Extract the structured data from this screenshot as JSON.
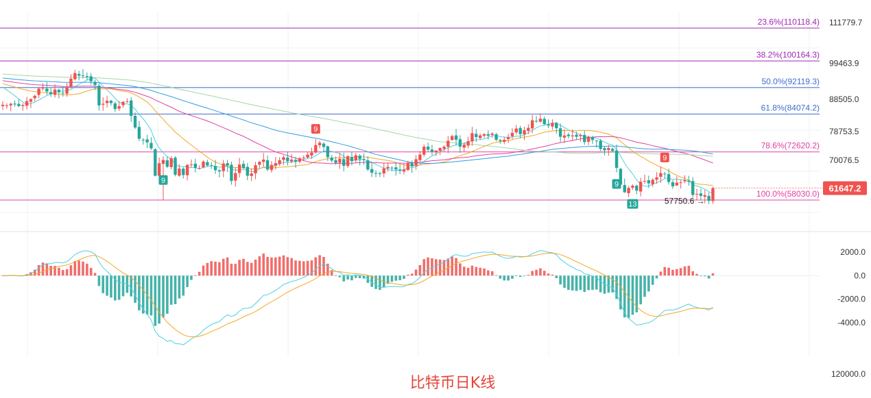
{
  "caption": "比特币日K线",
  "colors": {
    "up": "#ef5350",
    "down": "#26a69a",
    "ma1": "#4dd0e1",
    "ma2": "#f5a623",
    "ma3": "#e040a0",
    "ma4": "#2f9ee0",
    "ma5": "#a5d6a7",
    "macd_dif": "#4dd0e1",
    "macd_dea": "#f5a623",
    "grid": "#eef0f3"
  },
  "chart_data": [
    {
      "type": "candlestick",
      "title": "",
      "price_axis_ticks": [
        "111779.7",
        "99463.9",
        "88505.0",
        "78753.5",
        "70076.5"
      ],
      "price_axis_tick_values": [
        111779.7,
        99463.9,
        88505.0,
        78753.5,
        70076.5
      ],
      "current_price": 61647.2,
      "current_price_label": "61647.2",
      "low_marker_label": "57750.6",
      "low_marker_value": 57750.6,
      "fibonacci_levels": [
        {
          "label": "23.6%(110118.4)",
          "value": 110118.4,
          "color": "#9c27b0"
        },
        {
          "label": "38.2%(100164.3)",
          "value": 100164.3,
          "color": "#9c27b0"
        },
        {
          "label": "50.0%(92119.3)",
          "value": 92119.3,
          "color": "#3f6fd1"
        },
        {
          "label": "61.8%(84074.2)",
          "value": 84074.2,
          "color": "#3f6fd1"
        },
        {
          "label": "78.6%(72620.2)",
          "value": 72620.2,
          "color": "#e040a0"
        },
        {
          "label": "100.0%(58030.0)",
          "value": 58030.0,
          "color": "#e040a0"
        }
      ],
      "td_markers": [
        {
          "label": "9",
          "bar": 40,
          "kind": "buy"
        },
        {
          "label": "9",
          "bar": 78,
          "kind": "sell"
        },
        {
          "label": "9",
          "bar": 153,
          "kind": "buy"
        },
        {
          "label": "13",
          "bar": 157,
          "kind": "buy"
        },
        {
          "label": "9",
          "bar": 165,
          "kind": "sell"
        }
      ],
      "closes": [
        86900,
        86700,
        87200,
        87000,
        86500,
        86800,
        88000,
        88600,
        89600,
        91800,
        92000,
        90900,
        90100,
        91500,
        90700,
        90400,
        92200,
        94800,
        96500,
        95700,
        95600,
        95300,
        94000,
        92900,
        86700,
        87200,
        88100,
        87400,
        85600,
        86500,
        87800,
        87900,
        83500,
        80000,
        76600,
        76300,
        75500,
        73700,
        65400,
        69200,
        70200,
        68100,
        70700,
        65700,
        67600,
        65600,
        68700,
        68800,
        67800,
        67700,
        69700,
        68500,
        68300,
        67100,
        66700,
        69100,
        68500,
        63800,
        66200,
        68800,
        67800,
        65400,
        66100,
        68600,
        69600,
        70300,
        67300,
        68700,
        69200,
        70100,
        71000,
        69800,
        70300,
        69600,
        70700,
        70900,
        71800,
        72400,
        74700,
        75400,
        74100,
        71000,
        70000,
        69300,
        70500,
        68400,
        71300,
        69800,
        71600,
        70400,
        70200,
        67300,
        66300,
        66100,
        65900,
        67600,
        68100,
        67700,
        67300,
        66900,
        67300,
        69300,
        68200,
        70400,
        71800,
        74200,
        73300,
        72700,
        73000,
        73800,
        74200,
        76000,
        77400,
        76300,
        74200,
        74800,
        75900,
        78300,
        77100,
        77600,
        78000,
        77500,
        78200,
        76300,
        75900,
        76300,
        77100,
        78400,
        79700,
        78000,
        79200,
        79900,
        82200,
        81800,
        82700,
        81000,
        80600,
        81400,
        79800,
        77200,
        77600,
        77400,
        77600,
        77200,
        77700,
        75600,
        77200,
        76200,
        75900,
        73500,
        73100,
        73800,
        72900,
        67800,
        62700,
        60400,
        61700,
        62400,
        60900,
        63600,
        63800,
        63100,
        64200,
        64900,
        66200,
        66000,
        63500,
        62200,
        63300,
        63400,
        64000,
        63600,
        59600,
        59900,
        59300,
        59500,
        57800,
        61647.2
      ],
      "volume_axis_max_label": "120000.0"
    },
    {
      "type": "bar",
      "title": "",
      "indicator": "MACD",
      "axis_ticks": [
        "2000.0",
        "0.0",
        "-2000.0",
        "-4000.0"
      ],
      "axis_tick_values": [
        2000,
        0,
        -2000,
        -4000
      ],
      "series": [
        {
          "name": "",
          "role": "histogram"
        },
        {
          "name": "",
          "role": "dif"
        },
        {
          "name": "",
          "role": "dea"
        }
      ]
    }
  ]
}
